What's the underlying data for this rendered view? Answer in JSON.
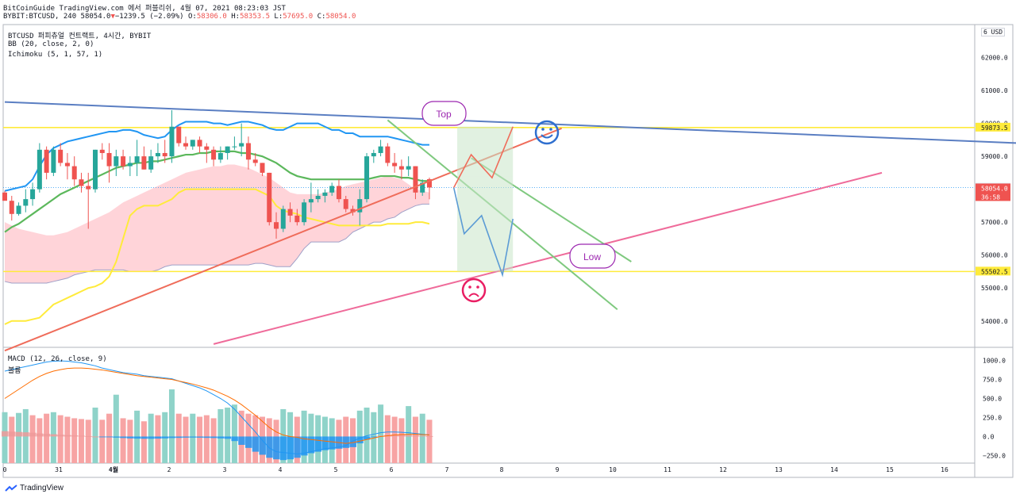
{
  "header": {
    "line1": "BitCoinGuide TradingView.com 에서 퍼블리쉬, 4월 07, 2021 08:23:03 JST",
    "symbol_prefix": "BYBIT:BTCUSD, 240 58054.0",
    "change_arrow": "▼",
    "change": "−1239.5 (−2.09%)",
    "o_label": "O:",
    "o": "58306.0",
    "h_label": "H:",
    "h": "58353.5",
    "l_label": "L:",
    "l": "57695.0",
    "c_label": "C:",
    "c": "58054.0"
  },
  "legend": {
    "title": "BTCUSD 퍼피츄얼 컨트랙트, 4시간, BYBIT",
    "bb": "BB (20, close, 2, 0)",
    "ichimoku": "Ichimoku (5, 1, 57, 1)"
  },
  "macd_legend": {
    "macd": "MACD (12, 26, close, 9)",
    "volume": "볼륨"
  },
  "currency_button": "6 USD",
  "footer": {
    "brand": "TradingView"
  },
  "colors": {
    "up": "#26a69a",
    "down": "#ef5350",
    "bb_basis": "#5cb85c",
    "bb_band": "#2196f3",
    "tenkan": "#ffeb3b",
    "cloud": "#ffcdd2",
    "hline": "#ffeb3b",
    "trend_blue": "#5a7ec2",
    "trend_red": "#ef6c5a",
    "trend_pink": "#ef6b9a",
    "annot_purple": "#9c27b0",
    "annot_blue": "#2f6fcf",
    "annot_pink": "#e91e63"
  },
  "chart_data": [
    {
      "type": "candlestick",
      "title": "BTCUSD 퍼피츄얼 컨트랙트, 4시간, BYBIT",
      "x_tick_labels": [
        "0",
        "31",
        "4월",
        "2",
        "3",
        "4",
        "5",
        "6",
        "7",
        "8",
        "9",
        "10",
        "11",
        "12",
        "13",
        "14",
        "15",
        "16"
      ],
      "y_tick_labels": [
        "54000.0",
        "55000.0",
        "56000.0",
        "57000.0",
        "58000.0",
        "59000.0",
        "60000.0",
        "61000.0",
        "62000.0"
      ],
      "ylim": [
        53200,
        63000
      ],
      "price_labels": [
        {
          "value": 59873.5,
          "text": "59873.5"
        },
        {
          "value": 58055.0,
          "text": "58055.0"
        },
        {
          "value": 58054.0,
          "text": "58054.0",
          "countdown": "36:58"
        },
        {
          "value": 55502.5,
          "text": "55502.5"
        }
      ],
      "horizontal_lines": [
        59873.5,
        55502.5
      ],
      "candles": [
        [
          0,
          57900,
          57950,
          57700,
          57650
        ],
        [
          1,
          57650,
          57800,
          57050,
          57250
        ],
        [
          2,
          57250,
          57600,
          57200,
          57500
        ],
        [
          3,
          57500,
          58000,
          57300,
          57700
        ],
        [
          4,
          57700,
          58200,
          57500,
          58000
        ],
        [
          5,
          58000,
          59400,
          57900,
          59200
        ],
        [
          6,
          59200,
          59300,
          58300,
          58500
        ],
        [
          7,
          58500,
          59300,
          58400,
          59200
        ],
        [
          8,
          59200,
          59400,
          58700,
          58800
        ],
        [
          9,
          58800,
          59100,
          58300,
          58700
        ],
        [
          10,
          58700,
          59000,
          58100,
          58300
        ],
        [
          11,
          58300,
          58500,
          57900,
          58100
        ],
        [
          12,
          58100,
          58500,
          56800,
          58000
        ],
        [
          13,
          58000,
          59200,
          57900,
          59200
        ],
        [
          14,
          59200,
          59400,
          58900,
          59100
        ],
        [
          15,
          59100,
          59400,
          58200,
          58700
        ],
        [
          16,
          58700,
          59200,
          58400,
          59000
        ],
        [
          17,
          59000,
          59200,
          58600,
          58700
        ],
        [
          18,
          58700,
          59000,
          58400,
          58800
        ],
        [
          19,
          58800,
          59500,
          58400,
          59000
        ],
        [
          20,
          59000,
          59300,
          58600,
          58600
        ],
        [
          21,
          58600,
          59200,
          58500,
          59000
        ],
        [
          22,
          59000,
          59400,
          58800,
          59100
        ],
        [
          23,
          59100,
          59500,
          58800,
          59000
        ],
        [
          24,
          59000,
          60400,
          58800,
          59900
        ],
        [
          25,
          59900,
          59900,
          59300,
          59400
        ],
        [
          26,
          59400,
          59600,
          59200,
          59300
        ],
        [
          27,
          59300,
          59500,
          59200,
          59500
        ],
        [
          28,
          59500,
          59600,
          59100,
          59300
        ],
        [
          29,
          59300,
          59400,
          58800,
          59200
        ],
        [
          30,
          59200,
          59300,
          58700,
          58900
        ],
        [
          31,
          58900,
          59300,
          58800,
          59100
        ],
        [
          32,
          59100,
          59300,
          58900,
          59300
        ],
        [
          33,
          59300,
          59600,
          59200,
          59300
        ],
        [
          34,
          59300,
          60000,
          59000,
          59400
        ],
        [
          35,
          59400,
          59600,
          58600,
          58900
        ],
        [
          36,
          58900,
          59100,
          58700,
          58800
        ],
        [
          37,
          58800,
          58800,
          58400,
          58500
        ],
        [
          38,
          58500,
          58500,
          56900,
          57000
        ],
        [
          39,
          57000,
          57300,
          56500,
          56800
        ],
        [
          40,
          56800,
          57500,
          56700,
          57400
        ],
        [
          41,
          57400,
          57600,
          57000,
          57200
        ],
        [
          42,
          57200,
          57400,
          56900,
          57000
        ],
        [
          43,
          57000,
          57700,
          56900,
          57600
        ],
        [
          44,
          57600,
          58200,
          57300,
          57700
        ],
        [
          45,
          57700,
          58000,
          57600,
          57800
        ],
        [
          46,
          57800,
          58000,
          57600,
          57900
        ],
        [
          47,
          57900,
          58200,
          57800,
          58100
        ],
        [
          48,
          58100,
          58300,
          57600,
          57700
        ],
        [
          49,
          57700,
          57800,
          57300,
          57400
        ],
        [
          50,
          57400,
          57500,
          57200,
          57300
        ],
        [
          51,
          57300,
          58000,
          56900,
          57700
        ],
        [
          52,
          57700,
          59100,
          57600,
          59000
        ],
        [
          53,
          59000,
          59200,
          58800,
          59100
        ],
        [
          54,
          59100,
          59500,
          59000,
          59300
        ],
        [
          55,
          59300,
          59400,
          58700,
          58800
        ],
        [
          56,
          58800,
          59100,
          58500,
          58700
        ],
        [
          57,
          58700,
          58900,
          58300,
          58600
        ],
        [
          58,
          58600,
          59000,
          58400,
          58700
        ],
        [
          59,
          58700,
          58700,
          57700,
          57900
        ],
        [
          60,
          57900,
          58300,
          57800,
          58200
        ],
        [
          61,
          58306,
          58353.5,
          57695,
          58054
        ]
      ],
      "bb_basis": [
        56700,
        56850,
        56950,
        57100,
        57250,
        57400,
        57550,
        57700,
        57850,
        57950,
        58050,
        58150,
        58250,
        58350,
        58450,
        58550,
        58650,
        58700,
        58750,
        58800,
        58800,
        58850,
        58850,
        58900,
        58950,
        59000,
        59050,
        59050,
        59100,
        59100,
        59150,
        59150,
        59150,
        59150,
        59100,
        59100,
        59050,
        59000,
        58900,
        58800,
        58650,
        58500,
        58400,
        58350,
        58300,
        58300,
        58300,
        58300,
        58300,
        58300,
        58300,
        58300,
        58300,
        58350,
        58400,
        58400,
        58400,
        58350,
        58350,
        58300,
        58250,
        58250
      ],
      "bb_upper": [
        57950,
        58000,
        58050,
        58100,
        58300,
        58700,
        59050,
        59250,
        59350,
        59450,
        59500,
        59550,
        59600,
        59650,
        59700,
        59750,
        59750,
        59800,
        59800,
        59750,
        59650,
        59600,
        59550,
        59600,
        59800,
        59950,
        60050,
        60050,
        60050,
        60050,
        60000,
        60000,
        59950,
        60000,
        60050,
        60050,
        60000,
        59950,
        59850,
        59800,
        59800,
        59900,
        60000,
        60000,
        60000,
        60000,
        59900,
        59800,
        59800,
        59700,
        59700,
        59600,
        59600,
        59600,
        59600,
        59600,
        59550,
        59500,
        59450,
        59400,
        59350,
        59350
      ],
      "tenkan": [
        53900,
        54000,
        54000,
        54000,
        54050,
        54100,
        54300,
        54500,
        54600,
        54700,
        54800,
        54900,
        55000,
        55050,
        55150,
        55350,
        55800,
        56500,
        57200,
        57400,
        57500,
        57500,
        57500,
        57600,
        57700,
        57900,
        58000,
        58000,
        58000,
        58000,
        58000,
        58000,
        58000,
        58000,
        58000,
        58000,
        58000,
        57900,
        57800,
        57500,
        57350,
        57300,
        57250,
        57150,
        57100,
        57050,
        57000,
        56950,
        56900,
        56900,
        56900,
        56900,
        56900,
        56900,
        56900,
        56950,
        56950,
        56950,
        56950,
        57000,
        57000,
        56950
      ],
      "cloud_top": [
        57000,
        56900,
        56800,
        56750,
        56700,
        56650,
        56600,
        56600,
        56650,
        56700,
        56800,
        56900,
        57000,
        57100,
        57200,
        57300,
        57450,
        57600,
        57700,
        57800,
        57900,
        58000,
        58100,
        58200,
        58300,
        58400,
        58500,
        58550,
        58600,
        58650,
        58700,
        58700,
        58750,
        58750,
        58700,
        58650,
        58550,
        58450,
        58350,
        58200,
        58050,
        57900,
        57850,
        57850,
        57850,
        57850,
        57900,
        57950,
        58000,
        58100,
        58150,
        58200,
        58250,
        58300,
        58350,
        58400,
        58350,
        58300,
        58150,
        58000,
        57950,
        57900
      ],
      "cloud_bottom": [
        55200,
        55150,
        55150,
        55150,
        55150,
        55150,
        55150,
        55200,
        55250,
        55300,
        55400,
        55450,
        55500,
        55550,
        55550,
        55550,
        55550,
        55550,
        55500,
        55500,
        55500,
        55500,
        55550,
        55650,
        55700,
        55700,
        55700,
        55700,
        55700,
        55700,
        55700,
        55700,
        55700,
        55700,
        55700,
        55700,
        55750,
        55750,
        55700,
        55650,
        55650,
        55650,
        55900,
        56200,
        56400,
        56400,
        56400,
        56400,
        56400,
        56500,
        56700,
        56800,
        56900,
        57000,
        57000,
        57100,
        57150,
        57300,
        57400,
        57500,
        57550,
        57550
      ],
      "trendlines": [
        {
          "name": "resistance-blue",
          "points": [
            [
              0,
              60650
            ],
            [
              169,
              59200
            ]
          ]
        },
        {
          "name": "support-red",
          "points": [
            [
              0,
              53100
            ],
            [
              80,
              59850
            ]
          ]
        },
        {
          "name": "support-pink",
          "points": [
            [
              30,
              53300
            ],
            [
              126,
              58500
            ]
          ]
        },
        {
          "name": "channel-green",
          "points": [
            [
              55,
              60100
            ],
            [
              88,
              54350
            ]
          ]
        },
        {
          "name": "channel-green-2",
          "points": [
            [
              67,
              58950
            ],
            [
              90,
              55800
            ]
          ]
        }
      ]
    },
    {
      "type": "bar",
      "title": "MACD (12, 26, close, 9)",
      "y_tick_labels": [
        "1000.0",
        "750.0",
        "500.0",
        "250.0",
        "0.0",
        "−250.0"
      ],
      "ylim": [
        -350,
        1100
      ],
      "volume_up": [
        true,
        false,
        true,
        true,
        false,
        false,
        false,
        true,
        false,
        false,
        false,
        false,
        false,
        true,
        false,
        false,
        true,
        false,
        false,
        true,
        false,
        true,
        false,
        true,
        true,
        false,
        false,
        true,
        false,
        false,
        false,
        true,
        true,
        true,
        false,
        false,
        false,
        false,
        false,
        false,
        true,
        true,
        false,
        true,
        true,
        true,
        true,
        true,
        false,
        false,
        false,
        true,
        true,
        true,
        true,
        false,
        false,
        false,
        true,
        false,
        true,
        false
      ],
      "volume": [
        320,
        260,
        310,
        360,
        280,
        240,
        300,
        320,
        280,
        260,
        240,
        230,
        220,
        380,
        220,
        300,
        550,
        240,
        220,
        340,
        200,
        300,
        280,
        320,
        620,
        300,
        260,
        300,
        260,
        280,
        240,
        360,
        380,
        420,
        340,
        300,
        280,
        260,
        240,
        220,
        360,
        320,
        260,
        340,
        300,
        280,
        260,
        240,
        220,
        260,
        240,
        340,
        380,
        320,
        420,
        280,
        260,
        240,
        400,
        260,
        300,
        220
      ],
      "histogram": [
        70,
        65,
        60,
        55,
        50,
        40,
        35,
        30,
        25,
        20,
        15,
        10,
        5,
        0,
        -5,
        -10,
        -15,
        -20,
        -25,
        -28,
        -30,
        -30,
        -28,
        -25,
        -20,
        -18,
        -15,
        -14,
        -15,
        -18,
        -20,
        -25,
        -30,
        -60,
        -110,
        -150,
        -200,
        -240,
        -280,
        -300,
        -310,
        -300,
        -280,
        -250,
        -220,
        -200,
        -180,
        -170,
        -160,
        -150,
        -140,
        -90,
        -40,
        -10,
        10,
        20,
        25,
        25,
        20,
        15,
        10,
        5
      ],
      "macd_line": [
        860,
        880,
        900,
        920,
        940,
        960,
        980,
        990,
        995,
        990,
        980,
        970,
        950,
        930,
        900,
        880,
        860,
        840,
        830,
        820,
        800,
        790,
        780,
        770,
        760,
        730,
        700,
        670,
        640,
        600,
        550,
        500,
        440,
        360,
        260,
        160,
        60,
        -50,
        -150,
        -200,
        -210,
        -220,
        -230,
        -220,
        -200,
        -180,
        -160,
        -150,
        -140,
        -120,
        -60,
        -20,
        10,
        30,
        50,
        60,
        60,
        55,
        50,
        40,
        30,
        20
      ],
      "signal_line": [
        500,
        560,
        620,
        680,
        740,
        790,
        830,
        860,
        880,
        895,
        900,
        900,
        895,
        885,
        875,
        860,
        845,
        830,
        815,
        800,
        790,
        780,
        770,
        760,
        750,
        730,
        710,
        690,
        665,
        640,
        610,
        570,
        530,
        480,
        420,
        350,
        280,
        200,
        120,
        60,
        20,
        0,
        -10,
        -30,
        -40,
        -50,
        -60,
        -70,
        -80,
        -90,
        -80,
        -60,
        -40,
        -20,
        0,
        10,
        20,
        25,
        30,
        30,
        25,
        20
      ]
    }
  ],
  "annotations": {
    "top_label": "Top",
    "low_label": "Low",
    "smile_icon": "smiley-face-icon",
    "sad_icon": "sad-face-icon"
  },
  "time_axis_label": "4월"
}
